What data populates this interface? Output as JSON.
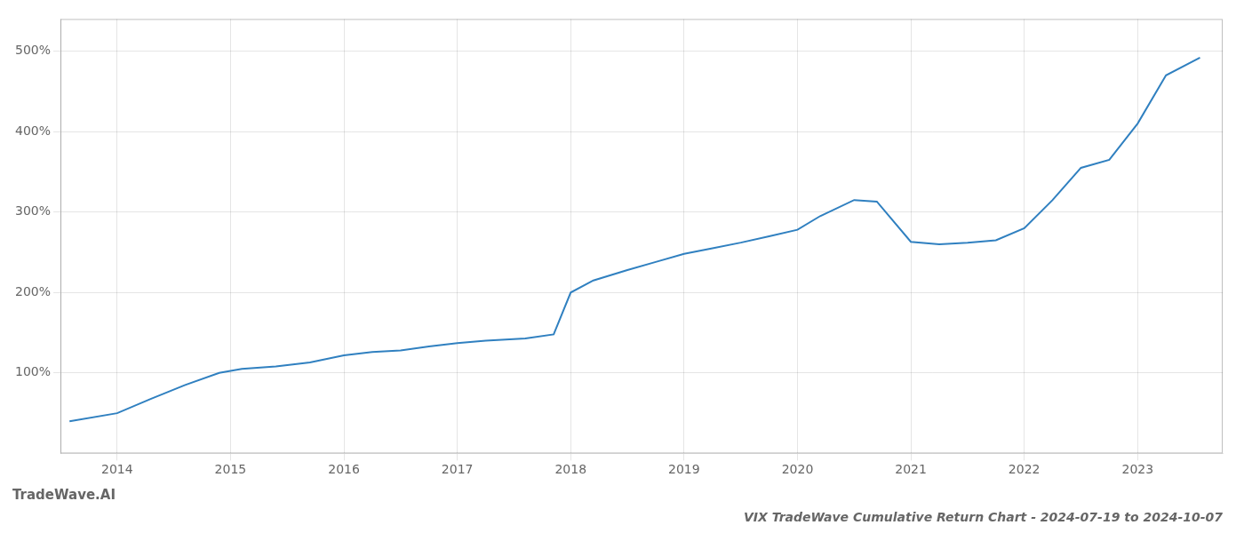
{
  "chart_data": {
    "type": "line",
    "title": "VIX TradeWave Cumulative Return Chart - 2024-07-19 to 2024-10-07",
    "annotations": [
      "TradeWave.AI"
    ],
    "x": [
      2013.58,
      2014.0,
      2014.3,
      2014.6,
      2014.9,
      2015.1,
      2015.4,
      2015.7,
      2016.0,
      2016.25,
      2016.5,
      2016.75,
      2017.0,
      2017.25,
      2017.6,
      2017.85,
      2018.0,
      2018.2,
      2018.5,
      2018.75,
      2019.0,
      2019.25,
      2019.5,
      2019.75,
      2020.0,
      2020.2,
      2020.5,
      2020.7,
      2021.0,
      2021.25,
      2021.5,
      2021.75,
      2022.0,
      2022.25,
      2022.5,
      2022.75,
      2023.0,
      2023.25,
      2023.55
    ],
    "values": [
      40,
      50,
      68,
      85,
      100,
      105,
      108,
      113,
      122,
      126,
      128,
      133,
      137,
      140,
      143,
      148,
      200,
      215,
      228,
      238,
      248,
      255,
      262,
      270,
      278,
      295,
      315,
      313,
      263,
      260,
      262,
      265,
      280,
      315,
      355,
      365,
      410,
      470,
      492
    ],
    "color": "#3080c0",
    "xlim": [
      2013.5,
      2023.75
    ],
    "ylim": [
      0,
      540
    ],
    "xticks": [
      2014,
      2015,
      2016,
      2017,
      2018,
      2019,
      2020,
      2021,
      2022,
      2023
    ],
    "yticks": [
      {
        "value": 100,
        "label": "100%"
      },
      {
        "value": 200,
        "label": "200%"
      },
      {
        "value": 300,
        "label": "300%"
      },
      {
        "value": 400,
        "label": "400%"
      },
      {
        "value": 500,
        "label": "500%"
      }
    ],
    "grid": true
  }
}
